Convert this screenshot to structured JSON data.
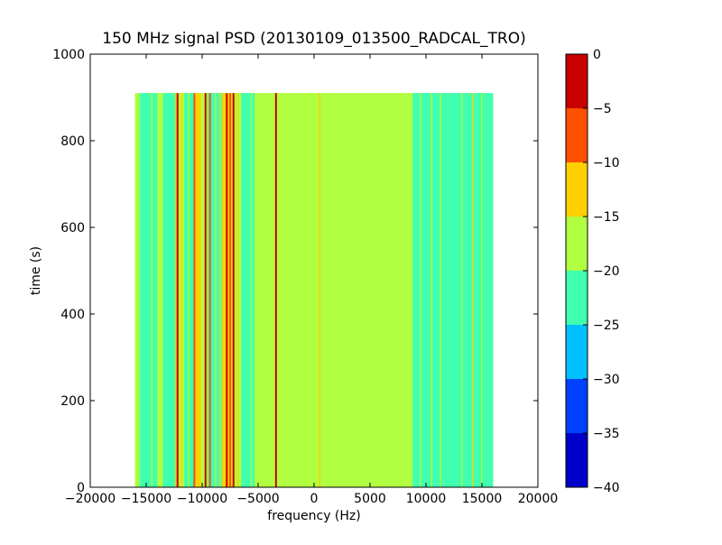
{
  "chart_data": {
    "type": "heatmap",
    "title": "150 MHz signal PSD (20130109_013500_RADCAL_TRO)",
    "xlabel": "frequency (Hz)",
    "ylabel": "time (s)",
    "xlim": [
      -20000,
      20000
    ],
    "ylim": [
      0,
      1000
    ],
    "x_ticks": [
      -20000,
      -15000,
      -10000,
      -5000,
      0,
      5000,
      10000,
      15000,
      20000
    ],
    "x_tick_labels": [
      "−20000",
      "−15000",
      "−10000",
      "−5000",
      "0",
      "5000",
      "10000",
      "15000",
      "20000"
    ],
    "y_ticks": [
      0,
      200,
      400,
      600,
      800,
      1000
    ],
    "y_tick_labels": [
      "0",
      "200",
      "400",
      "600",
      "800",
      "1000"
    ],
    "data_extent": {
      "x": [
        -16000,
        16000
      ],
      "y": [
        0,
        910
      ]
    },
    "background_level": -17.5,
    "colorbar": {
      "range": [
        -40,
        0
      ],
      "levels": [
        -40,
        -35,
        -30,
        -25,
        -20,
        -15,
        -10,
        -5,
        0
      ],
      "tick_labels": [
        "−40",
        "−35",
        "−30",
        "−25",
        "−20",
        "−15",
        "−10",
        "−5",
        "0"
      ],
      "colors": [
        "#0000c8",
        "#0040ff",
        "#00c0ff",
        "#40ffb0",
        "#b0ff40",
        "#ffd000",
        "#ff5000",
        "#c80000"
      ]
    },
    "bands": [
      {
        "x0": -16000,
        "x1": -15700,
        "level": -17.5
      },
      {
        "x0": -15700,
        "x1": -14000,
        "level": -22.5
      },
      {
        "x0": -14000,
        "x1": -13500,
        "level": -17.5
      },
      {
        "x0": -13500,
        "x1": -12400,
        "level": -22.5
      },
      {
        "x0": -12400,
        "x1": -12100,
        "level": -12.5
      },
      {
        "x0": -12100,
        "x1": -11600,
        "level": -17.5
      },
      {
        "x0": -11600,
        "x1": -10600,
        "level": -22.5
      },
      {
        "x0": -10600,
        "x1": -10100,
        "level": -12.5
      },
      {
        "x0": -10100,
        "x1": -9500,
        "level": -17.5
      },
      {
        "x0": -9500,
        "x1": -8200,
        "level": -22.5
      },
      {
        "x0": -8200,
        "x1": -7300,
        "level": -12.5
      },
      {
        "x0": -7300,
        "x1": -6500,
        "level": -17.5
      },
      {
        "x0": -6500,
        "x1": -5300,
        "level": -22.5
      },
      {
        "x0": -5300,
        "x1": -3800,
        "level": -17.5
      },
      {
        "x0": -3800,
        "x1": 6500,
        "level": -17.5
      },
      {
        "x0": 6500,
        "x1": 8800,
        "level": -20.0
      },
      {
        "x0": 8800,
        "x1": 11000,
        "level": -22.5
      },
      {
        "x0": 11000,
        "x1": 13500,
        "level": -22.5
      },
      {
        "x0": 13500,
        "x1": 16000,
        "level": -22.5
      }
    ],
    "lines": [
      {
        "x": -15600,
        "level": -17.5
      },
      {
        "x": -14500,
        "level": -17.5
      },
      {
        "x": -12200,
        "level": -2.5
      },
      {
        "x": -11800,
        "level": -12.5
      },
      {
        "x": -11200,
        "level": -17.5
      },
      {
        "x": -10700,
        "level": -7.5
      },
      {
        "x": -10300,
        "level": -12.5
      },
      {
        "x": -9700,
        "level": -2.5
      },
      {
        "x": -9300,
        "level": -7.5
      },
      {
        "x": -8800,
        "level": -17.5
      },
      {
        "x": -8400,
        "level": -12.5
      },
      {
        "x": -7800,
        "level": -2.5
      },
      {
        "x": -7500,
        "level": -7.5
      },
      {
        "x": -7200,
        "level": -2.5
      },
      {
        "x": -6800,
        "level": -12.5
      },
      {
        "x": -5600,
        "level": -17.5
      },
      {
        "x": -4400,
        "level": -17.5
      },
      {
        "x": -3400,
        "level": -2.5
      },
      {
        "x": 500,
        "level": -12.5
      },
      {
        "x": 2500,
        "level": -17.5
      },
      {
        "x": 7000,
        "level": -17.5
      },
      {
        "x": 7600,
        "level": -17.5
      },
      {
        "x": 9500,
        "level": -17.5
      },
      {
        "x": 10500,
        "level": -17.5
      },
      {
        "x": 11300,
        "level": -17.5
      },
      {
        "x": 13200,
        "level": -17.5
      },
      {
        "x": 14200,
        "level": -12.5
      },
      {
        "x": 15000,
        "level": -17.5
      }
    ]
  }
}
